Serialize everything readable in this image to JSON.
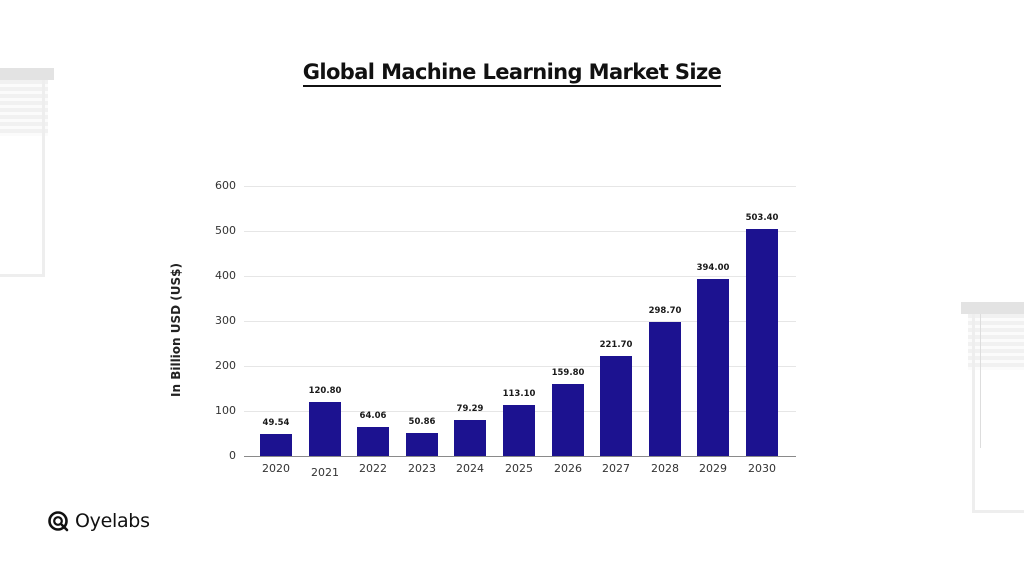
{
  "title": "Global Machine Learning Market Size",
  "brand": {
    "name": "Oyelabs",
    "icon": "oyelabs-logo-icon"
  },
  "chart_data": {
    "type": "bar",
    "title": "Global Machine Learning Market Size",
    "xlabel": "",
    "ylabel": "In Billion USD (US$)",
    "ylim": [
      0,
      600
    ],
    "yticks": [
      0,
      100,
      200,
      300,
      400,
      500,
      600
    ],
    "grid": true,
    "legend": null,
    "bar_color": "#1c1290",
    "categories": [
      "2020",
      "2021",
      "2022",
      "2023",
      "2024",
      "2025",
      "2026",
      "2027",
      "2028",
      "2029",
      "2030"
    ],
    "values": [
      49.54,
      120.8,
      64.06,
      50.86,
      79.29,
      113.1,
      159.8,
      221.7,
      298.7,
      394.0,
      503.4
    ],
    "value_labels": [
      "49.54",
      "120.80",
      "64.06",
      "50.86",
      "79.29",
      "113.10",
      "159.80",
      "221.70",
      "298.70",
      "394.00",
      "503.40"
    ]
  }
}
